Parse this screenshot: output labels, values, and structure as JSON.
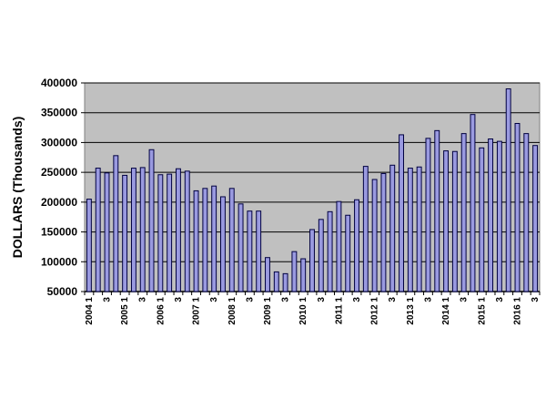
{
  "chart_data": {
    "type": "bar",
    "title": "",
    "xlabel": "",
    "ylabel": "DOLLARS (Thousands)",
    "ylim": [
      50000,
      400000
    ],
    "yticks": [
      50000,
      100000,
      150000,
      200000,
      250000,
      300000,
      350000,
      400000
    ],
    "ytick_labels": [
      "50000",
      "100000",
      "150000",
      "200000",
      "250000",
      "300000",
      "350000",
      "400000"
    ],
    "grid": true,
    "bar_color": "#9a9ae0",
    "plot_background": "#c0c0c0",
    "categories": [
      "2004 1",
      "2",
      "3",
      "4",
      "2005 1",
      "2",
      "3",
      "4",
      "2006 1",
      "2",
      "3",
      "4",
      "2007 1",
      "2",
      "3",
      "4",
      "2008 1",
      "2",
      "3",
      "4",
      "2009 1",
      "2",
      "3",
      "4",
      "2010 1",
      "2",
      "3",
      "4",
      "2011 1",
      "2",
      "3",
      "4",
      "2012 1",
      "2",
      "3",
      "4",
      "2013 1",
      "2",
      "3",
      "4",
      "2014 1",
      "2",
      "3",
      "4",
      "2015 1",
      "2",
      "3",
      "4",
      "2016 1",
      "2",
      "3"
    ],
    "category_labels": [
      "2004 1",
      "",
      "3",
      "",
      "2005 1",
      "",
      "3",
      "",
      "2006 1",
      "",
      "3",
      "",
      "2007 1",
      "",
      "3",
      "",
      "2008 1",
      "",
      "3",
      "",
      "2009 1",
      "",
      "3",
      "",
      "2010 1",
      "",
      "3",
      "",
      "2011 1",
      "",
      "3",
      "",
      "2012 1",
      "",
      "3",
      "",
      "2013 1",
      "",
      "3",
      "",
      "2014 1",
      "",
      "3",
      "",
      "2015 1",
      "",
      "3",
      "",
      "2016 1",
      "",
      "3"
    ],
    "values": [
      205000,
      257000,
      249000,
      278000,
      245000,
      257000,
      258000,
      288000,
      246000,
      247000,
      256000,
      252000,
      219000,
      223000,
      227000,
      209000,
      223000,
      197000,
      185000,
      185000,
      107000,
      83000,
      80000,
      117000,
      105000,
      154000,
      171000,
      184000,
      201000,
      178000,
      204000,
      260000,
      238000,
      248000,
      262000,
      313000,
      257000,
      259000,
      307000,
      320000,
      286000,
      285000,
      315000,
      347000,
      291000,
      306000,
      302000,
      390000,
      332000,
      315000,
      295000
    ]
  }
}
